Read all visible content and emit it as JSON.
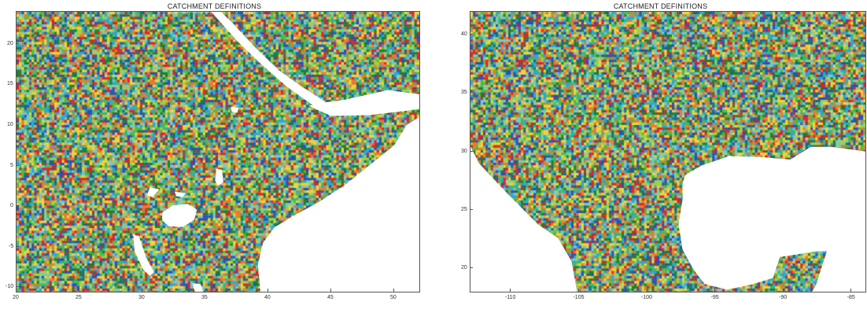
{
  "maps": [
    {
      "title": "CATCHMENT DEFINITIONS",
      "region": "east-africa",
      "lon_range": [
        20,
        52
      ],
      "lat_range": [
        -10.5,
        24
      ],
      "x_ticks": [
        {
          "value": 20,
          "label": "20"
        },
        {
          "value": 25,
          "label": "25"
        },
        {
          "value": 30,
          "label": "30"
        },
        {
          "value": 35,
          "label": "35"
        },
        {
          "value": 40,
          "label": "40"
        },
        {
          "value": 45,
          "label": "45"
        },
        {
          "value": 50,
          "label": "50"
        }
      ],
      "y_ticks": [
        {
          "value": 20,
          "label": "20"
        },
        {
          "value": 15,
          "label": "15"
        },
        {
          "value": 10,
          "label": "10"
        },
        {
          "value": 5,
          "label": "5"
        },
        {
          "value": 0,
          "label": "0"
        },
        {
          "value": -5,
          "label": "-5"
        },
        {
          "value": -10,
          "label": "-10"
        }
      ],
      "water_bodies": [
        {
          "name": "Red Sea",
          "polygon": [
            [
              32.5,
              24
            ],
            [
              35.5,
              24
            ],
            [
              37.5,
              20.5
            ],
            [
              39.5,
              17.5
            ],
            [
              41.5,
              14.8
            ],
            [
              43.3,
              12.8
            ],
            [
              43.7,
              12.4
            ],
            [
              44.5,
              12.9
            ],
            [
              42.6,
              14.8
            ],
            [
              40.8,
              16.8
            ],
            [
              38.8,
              19.8
            ],
            [
              37.2,
              22.5
            ],
            [
              36.2,
              24
            ]
          ]
        },
        {
          "name": "Gulf of Aden",
          "polygon": [
            [
              43.3,
              12.4
            ],
            [
              45,
              11.2
            ],
            [
              48,
              11.3
            ],
            [
              51.3,
              11.9
            ],
            [
              52,
              12.1
            ],
            [
              52,
              13.8
            ],
            [
              49.5,
              14.3
            ],
            [
              46,
              13.1
            ],
            [
              44.5,
              12.8
            ]
          ]
        },
        {
          "name": "Indian Ocean",
          "polygon": [
            [
              52,
              11
            ],
            [
              51,
              10
            ],
            [
              50,
              7.5
            ],
            [
              48,
              5
            ],
            [
              46,
              2.5
            ],
            [
              44,
              0.5
            ],
            [
              42,
              -1.2
            ],
            [
              40.5,
              -2.6
            ],
            [
              39.6,
              -4.5
            ],
            [
              39.2,
              -7.2
            ],
            [
              39.4,
              -10.5
            ],
            [
              52,
              -10.5
            ]
          ]
        },
        {
          "name": "Lake Victoria",
          "polygon": [
            [
              31.6,
              -0.8
            ],
            [
              32.4,
              0.1
            ],
            [
              33.6,
              0.3
            ],
            [
              34.3,
              -0.4
            ],
            [
              34.1,
              -1.6
            ],
            [
              33.2,
              -2.5
            ],
            [
              32.1,
              -2.4
            ],
            [
              31.6,
              -1.7
            ]
          ]
        },
        {
          "name": "Lake Tanganyika",
          "polygon": [
            [
              29.3,
              -3.5
            ],
            [
              29.7,
              -3.7
            ],
            [
              30.3,
              -6.4
            ],
            [
              30.9,
              -8.1
            ],
            [
              30.6,
              -8.5
            ],
            [
              30.1,
              -7.8
            ],
            [
              29.4,
              -5.5
            ]
          ]
        },
        {
          "name": "Lake Turkana",
          "polygon": [
            [
              35.9,
              4.6
            ],
            [
              36.3,
              4.5
            ],
            [
              36.4,
              3.0
            ],
            [
              36.0,
              2.6
            ],
            [
              35.8,
              3.2
            ]
          ]
        },
        {
          "name": "Lake Tana",
          "polygon": [
            [
              37.1,
              12.3
            ],
            [
              37.6,
              12.1
            ],
            [
              37.5,
              11.6
            ],
            [
              37.1,
              11.7
            ]
          ]
        },
        {
          "name": "Lake Malawi",
          "polygon": [
            [
              34.0,
              -9.5
            ],
            [
              34.6,
              -9.6
            ],
            [
              34.8,
              -10.5
            ],
            [
              34.2,
              -10.5
            ]
          ]
        },
        {
          "name": "Lake Albert",
          "polygon": [
            [
              30.6,
              2.3
            ],
            [
              31.3,
              2.1
            ],
            [
              30.8,
              1.2
            ],
            [
              30.4,
              1.4
            ]
          ]
        },
        {
          "name": "Lake Kyoga",
          "polygon": [
            [
              32.6,
              1.8
            ],
            [
              33.4,
              1.6
            ],
            [
              33.2,
              1.2
            ],
            [
              32.7,
              1.3
            ]
          ]
        }
      ]
    },
    {
      "title": "CATCHMENT DEFINITIONS",
      "region": "mexico-gulf",
      "lon_range": [
        -113,
        -84
      ],
      "lat_range": [
        18,
        42
      ],
      "x_ticks": [
        {
          "value": -110,
          "label": "-110"
        },
        {
          "value": -105,
          "label": "-105"
        },
        {
          "value": -100,
          "label": "-100"
        },
        {
          "value": -95,
          "label": "-95"
        },
        {
          "value": -90,
          "label": "-90"
        },
        {
          "value": -85,
          "label": "-85"
        }
      ],
      "y_ticks": [
        {
          "value": 40,
          "label": "40"
        },
        {
          "value": 35,
          "label": "35"
        },
        {
          "value": 30,
          "label": "30"
        },
        {
          "value": 25,
          "label": "25"
        },
        {
          "value": 20,
          "label": "20"
        }
      ],
      "water_bodies": [
        {
          "name": "Gulf of Mexico",
          "polygon": [
            [
              -97.2,
              28.0
            ],
            [
              -96.0,
              28.8
            ],
            [
              -94.0,
              29.6
            ],
            [
              -91.5,
              29.5
            ],
            [
              -89.5,
              29.3
            ],
            [
              -88.0,
              30.4
            ],
            [
              -86.5,
              30.4
            ],
            [
              -84,
              30.0
            ],
            [
              -84,
              21.6
            ],
            [
              -86.8,
              21.5
            ],
            [
              -87.5,
              21.5
            ],
            [
              -90.3,
              21.0
            ],
            [
              -90.8,
              19.2
            ],
            [
              -92.5,
              18.6
            ],
            [
              -94.2,
              18.2
            ],
            [
              -95.8,
              18.7
            ],
            [
              -96.6,
              19.9
            ],
            [
              -97.4,
              21.6
            ],
            [
              -97.7,
              23.8
            ],
            [
              -97.4,
              25.9
            ],
            [
              -97.4,
              27.3
            ]
          ]
        },
        {
          "name": "Gulf of California",
          "polygon": [
            [
              -113,
              30.4
            ],
            [
              -112.4,
              29.0
            ],
            [
              -110.8,
              27.0
            ],
            [
              -109.3,
              25.2
            ],
            [
              -108.0,
              23.7
            ],
            [
              -106.6,
              22.6
            ],
            [
              -105.6,
              20.6
            ],
            [
              -105.2,
              18.0
            ],
            [
              -113,
              18.0
            ]
          ]
        },
        {
          "name": "Caribbean Sea",
          "polygon": [
            [
              -84,
              21.6
            ],
            [
              -86.8,
              21.5
            ],
            [
              -87.6,
              18.6
            ],
            [
              -87.9,
              18.0
            ],
            [
              -84,
              18.0
            ]
          ]
        }
      ]
    }
  ]
}
